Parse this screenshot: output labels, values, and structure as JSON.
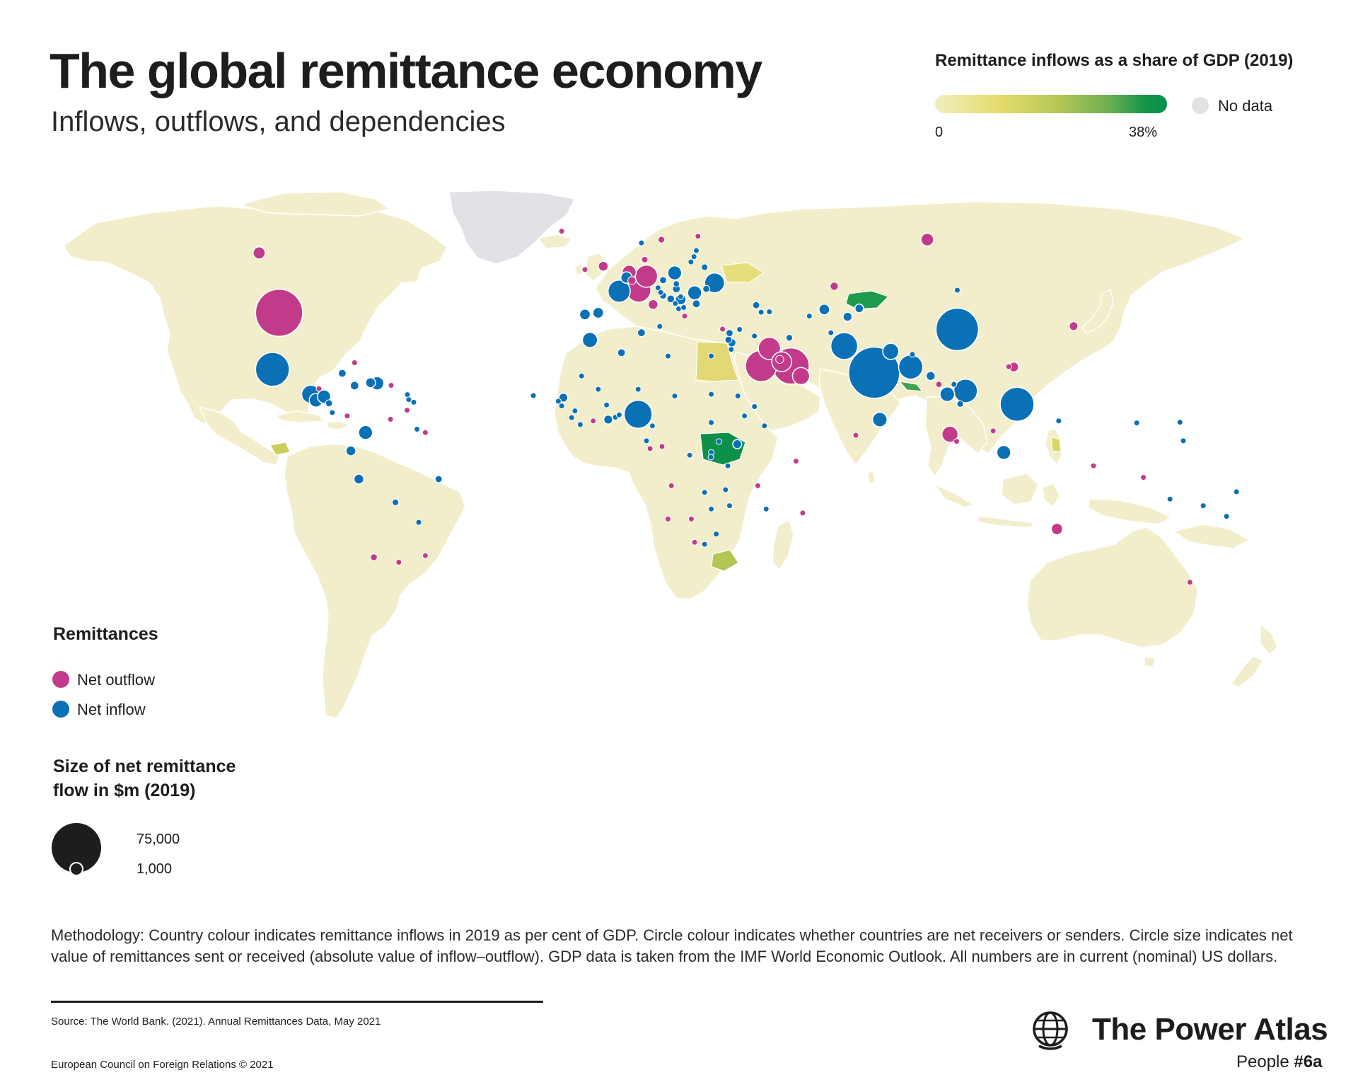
{
  "header": {
    "title": "The global remittance economy",
    "subtitle": "Inflows, outflows, and dependencies"
  },
  "gdp_legend": {
    "title": "Remittance inflows as a share of GDP (2019)",
    "min_label": "0",
    "max_label": "38%",
    "no_data_label": "No data",
    "gradient_colors": [
      "#f1edc2",
      "#e4dc6a",
      "#b8c957",
      "#6cae52",
      "#00904a"
    ],
    "no_data_color": "#e1e1e6"
  },
  "remittance_legend": {
    "title": "Remittances",
    "outflow_label": "Net outflow",
    "inflow_label": "Net inflow",
    "outflow_color": "#c23b8a",
    "inflow_color": "#0a71b6"
  },
  "size_legend": {
    "title": "Size of net remittance flow in $m (2019)",
    "big_label": "75,000",
    "small_label": "1,000",
    "big_value": 75000,
    "small_value": 1000
  },
  "map": {
    "land_color": "#f2eecb",
    "bubbles": [
      {
        "lon": -100,
        "lat": 40,
        "type": "out",
        "value": 68000
      },
      {
        "lon": -102,
        "lat": 23,
        "type": "in",
        "value": 35000
      },
      {
        "lon": -106,
        "lat": 58,
        "type": "out",
        "value": 4500
      },
      {
        "lon": -90.5,
        "lat": 15.5,
        "type": "in",
        "value": 10000
      },
      {
        "lon": -88.9,
        "lat": 13.7,
        "type": "in",
        "value": 5600
      },
      {
        "lon": -86.5,
        "lat": 14.8,
        "type": "in",
        "value": 5400
      },
      {
        "lon": -70.5,
        "lat": 18.8,
        "type": "in",
        "value": 5400
      },
      {
        "lon": -72.5,
        "lat": 19,
        "type": "in",
        "value": 3000
      },
      {
        "lon": -77.3,
        "lat": 18.1,
        "type": "in",
        "value": 2300
      },
      {
        "lon": -74,
        "lat": 4,
        "type": "in",
        "value": 6000
      },
      {
        "lon": -78.4,
        "lat": -1.5,
        "type": "in",
        "value": 3000
      },
      {
        "lon": -76,
        "lat": -10,
        "type": "in",
        "value": 3000
      },
      {
        "lon": -65,
        "lat": -17,
        "type": "in",
        "value": 1300
      },
      {
        "lon": -58,
        "lat": -23,
        "type": "in",
        "value": 600
      },
      {
        "lon": -52,
        "lat": -10,
        "type": "in",
        "value": 1500
      },
      {
        "lon": -71.5,
        "lat": -33.5,
        "type": "out",
        "value": 1400
      },
      {
        "lon": -64,
        "lat": -35,
        "type": "out",
        "value": 300
      },
      {
        "lon": -56,
        "lat": -33,
        "type": "out",
        "value": 200
      },
      {
        "lon": -79.5,
        "lat": 9,
        "type": "out",
        "value": 500
      },
      {
        "lon": -84,
        "lat": 10,
        "type": "in",
        "value": 200
      },
      {
        "lon": -85,
        "lat": 12.8,
        "type": "in",
        "value": 1500
      },
      {
        "lon": -88,
        "lat": 17.2,
        "type": "out",
        "value": 200
      },
      {
        "lon": -81,
        "lat": 21.8,
        "type": "in",
        "value": 1800
      },
      {
        "lon": -77.3,
        "lat": 25,
        "type": "out",
        "value": 200
      },
      {
        "lon": -66.3,
        "lat": 18.2,
        "type": "out",
        "value": 200
      },
      {
        "lon": -61.4,
        "lat": 15.4,
        "type": "in",
        "value": 150
      },
      {
        "lon": -61,
        "lat": 13.9,
        "type": "in",
        "value": 150
      },
      {
        "lon": -59.5,
        "lat": 13.1,
        "type": "in",
        "value": 150
      },
      {
        "lon": -61.5,
        "lat": 10.7,
        "type": "out",
        "value": 150
      },
      {
        "lon": -58.5,
        "lat": 5,
        "type": "in",
        "value": 300
      },
      {
        "lon": -56,
        "lat": 4,
        "type": "out",
        "value": 100
      },
      {
        "lon": -66.5,
        "lat": 8,
        "type": "out",
        "value": 300
      },
      {
        "lon": -15,
        "lat": 64.5,
        "type": "out",
        "value": 300
      },
      {
        "lon": -2.5,
        "lat": 54,
        "type": "out",
        "value": 3000
      },
      {
        "lon": -8,
        "lat": 53,
        "type": "out",
        "value": 400
      },
      {
        "lon": 2.3,
        "lat": 46.5,
        "type": "in",
        "value": 15000
      },
      {
        "lon": 10.5,
        "lat": 51,
        "type": "out",
        "value": 15000
      },
      {
        "lon": 8.2,
        "lat": 46.8,
        "type": "out",
        "value": 18000
      },
      {
        "lon": 5.3,
        "lat": 52.2,
        "type": "out",
        "value": 6000
      },
      {
        "lon": 4.5,
        "lat": 50.6,
        "type": "in",
        "value": 4000
      },
      {
        "lon": 6.1,
        "lat": 49.7,
        "type": "out",
        "value": 2000
      },
      {
        "lon": 12.5,
        "lat": 42.5,
        "type": "out",
        "value": 3000
      },
      {
        "lon": -4,
        "lat": 40,
        "type": "in",
        "value": 3500
      },
      {
        "lon": -8,
        "lat": 39.5,
        "type": "in",
        "value": 3500
      },
      {
        "lon": 15,
        "lat": 62,
        "type": "out",
        "value": 1300
      },
      {
        "lon": 9,
        "lat": 61,
        "type": "in",
        "value": 400
      },
      {
        "lon": 10,
        "lat": 56,
        "type": "out",
        "value": 1200
      },
      {
        "lon": 26,
        "lat": 63,
        "type": "out",
        "value": 300
      },
      {
        "lon": 14.5,
        "lat": 35.9,
        "type": "in",
        "value": 200
      },
      {
        "lon": 19,
        "lat": 52,
        "type": "in",
        "value": 6000
      },
      {
        "lon": 31,
        "lat": 49,
        "type": "in",
        "value": 12000
      },
      {
        "lon": 25,
        "lat": 46,
        "type": "in",
        "value": 6000
      },
      {
        "lon": 19.5,
        "lat": 47.2,
        "type": "in",
        "value": 1800
      },
      {
        "lon": 15.5,
        "lat": 49.8,
        "type": "in",
        "value": 1500
      },
      {
        "lon": 19.5,
        "lat": 48.7,
        "type": "in",
        "value": 1200
      },
      {
        "lon": 14,
        "lat": 47.5,
        "type": "in",
        "value": 800
      },
      {
        "lon": 14.8,
        "lat": 46.1,
        "type": "in",
        "value": 300
      },
      {
        "lon": 15.5,
        "lat": 45.2,
        "type": "in",
        "value": 1500
      },
      {
        "lon": 17.8,
        "lat": 44.2,
        "type": "in",
        "value": 1700
      },
      {
        "lon": 20.8,
        "lat": 44,
        "type": "in",
        "value": 3500
      },
      {
        "lon": 19.2,
        "lat": 42.8,
        "type": "in",
        "value": 300
      },
      {
        "lon": 20.2,
        "lat": 41.2,
        "type": "in",
        "value": 800
      },
      {
        "lon": 21.7,
        "lat": 41.6,
        "type": "in",
        "value": 300
      },
      {
        "lon": 25.5,
        "lat": 42.7,
        "type": "in",
        "value": 1800
      },
      {
        "lon": 28.5,
        "lat": 47.2,
        "type": "in",
        "value": 1500
      },
      {
        "lon": 28,
        "lat": 53.7,
        "type": "in",
        "value": 1300
      },
      {
        "lon": 23.9,
        "lat": 55.3,
        "type": "in",
        "value": 700
      },
      {
        "lon": 24.8,
        "lat": 56.9,
        "type": "in",
        "value": 600
      },
      {
        "lon": 25.5,
        "lat": 58.7,
        "type": "in",
        "value": 300
      },
      {
        "lon": 20.8,
        "lat": 44.8,
        "type": "in",
        "value": 300
      },
      {
        "lon": 22,
        "lat": 39,
        "type": "out",
        "value": 800
      },
      {
        "lon": 33.4,
        "lat": 35.1,
        "type": "out",
        "value": 100
      },
      {
        "lon": 43.5,
        "lat": 42.3,
        "type": "in",
        "value": 1500
      },
      {
        "lon": 45,
        "lat": 40.2,
        "type": "in",
        "value": 1000
      },
      {
        "lon": 47.5,
        "lat": 40.3,
        "type": "in",
        "value": 700
      },
      {
        "lon": 35.5,
        "lat": 33.9,
        "type": "in",
        "value": 1500
      },
      {
        "lon": 35.2,
        "lat": 31.9,
        "type": "in",
        "value": 1500
      },
      {
        "lon": 36.2,
        "lat": 31,
        "type": "in",
        "value": 2000
      },
      {
        "lon": 38.5,
        "lat": 35,
        "type": "in",
        "value": 1000
      },
      {
        "lon": 36,
        "lat": 29,
        "type": "in",
        "value": 200
      },
      {
        "lon": 43,
        "lat": 33,
        "type": "in",
        "value": 300
      },
      {
        "lon": 45,
        "lat": 24,
        "type": "out",
        "value": 30000
      },
      {
        "lon": 47.5,
        "lat": 29.3,
        "type": "out",
        "value": 15000
      },
      {
        "lon": 51.2,
        "lat": 25.3,
        "type": "out",
        "value": 12000
      },
      {
        "lon": 54,
        "lat": 24,
        "type": "out",
        "value": 40000
      },
      {
        "lon": 57,
        "lat": 21,
        "type": "out",
        "value": 9000
      },
      {
        "lon": 50.6,
        "lat": 26,
        "type": "out",
        "value": 2000
      },
      {
        "lon": 95,
        "lat": 62,
        "type": "out",
        "value": 5000
      },
      {
        "lon": 67,
        "lat": 48,
        "type": "out",
        "value": 2000
      },
      {
        "lon": 64,
        "lat": 41,
        "type": "in",
        "value": 3500
      },
      {
        "lon": 74.5,
        "lat": 41.3,
        "type": "in",
        "value": 2300
      },
      {
        "lon": 71,
        "lat": 38.8,
        "type": "in",
        "value": 2500
      },
      {
        "lon": 59.5,
        "lat": 39,
        "type": "in",
        "value": 100
      },
      {
        "lon": 66,
        "lat": 34,
        "type": "in",
        "value": 800
      },
      {
        "lon": 53.5,
        "lat": 32.5,
        "type": "in",
        "value": 1300
      },
      {
        "lon": 70,
        "lat": 30,
        "type": "in",
        "value": 22000
      },
      {
        "lon": 79,
        "lat": 22,
        "type": "in",
        "value": 80000
      },
      {
        "lon": 84,
        "lat": 28.4,
        "type": "in",
        "value": 8000
      },
      {
        "lon": 90.5,
        "lat": 27.5,
        "type": "in",
        "value": 100
      },
      {
        "lon": 90,
        "lat": 23.7,
        "type": "in",
        "value": 18000
      },
      {
        "lon": 80.7,
        "lat": 7.9,
        "type": "in",
        "value": 6500
      },
      {
        "lon": 73.5,
        "lat": 3.2,
        "type": "out",
        "value": 400
      },
      {
        "lon": 104,
        "lat": 35,
        "type": "in",
        "value": 55000
      },
      {
        "lon": 104,
        "lat": 46.8,
        "type": "in",
        "value": 500
      },
      {
        "lon": 139,
        "lat": 36,
        "type": "out",
        "value": 2200
      },
      {
        "lon": 121,
        "lat": 23.7,
        "type": "out",
        "value": 3000
      },
      {
        "lon": 119.5,
        "lat": 23.8,
        "type": "out",
        "value": 300
      },
      {
        "lon": 101,
        "lat": 15.5,
        "type": "in",
        "value": 6500
      },
      {
        "lon": 106.5,
        "lat": 16.5,
        "type": "in",
        "value": 17000
      },
      {
        "lon": 103,
        "lat": 18.5,
        "type": "in",
        "value": 300
      },
      {
        "lon": 104.9,
        "lat": 12.6,
        "type": "in",
        "value": 1300
      },
      {
        "lon": 96,
        "lat": 21,
        "type": "in",
        "value": 2500
      },
      {
        "lon": 98.5,
        "lat": 18.5,
        "type": "out",
        "value": 1200
      },
      {
        "lon": 101.8,
        "lat": 3.5,
        "type": "out",
        "value": 8000
      },
      {
        "lon": 103.8,
        "lat": 1.35,
        "type": "out",
        "value": 300
      },
      {
        "lon": 114.8,
        "lat": 4.5,
        "type": "out",
        "value": 300
      },
      {
        "lon": 122,
        "lat": 12.5,
        "type": "in",
        "value": 35000
      },
      {
        "lon": 118,
        "lat": -2,
        "type": "in",
        "value": 6000
      },
      {
        "lon": 134,
        "lat": -25,
        "type": "out",
        "value": 4000
      },
      {
        "lon": 174,
        "lat": -41,
        "type": "out",
        "value": 600
      },
      {
        "lon": 145,
        "lat": -6,
        "type": "out",
        "value": 300
      },
      {
        "lon": 160,
        "lat": -9.5,
        "type": "out",
        "value": 100
      },
      {
        "lon": 178,
        "lat": -18,
        "type": "in",
        "value": 300
      },
      {
        "lon": 168,
        "lat": -16,
        "type": "in",
        "value": 100
      },
      {
        "lon": -172,
        "lat": -13.8,
        "type": "in",
        "value": 150
      },
      {
        "lon": -175,
        "lat": -21.2,
        "type": "in",
        "value": 200
      },
      {
        "lon": 172,
        "lat": 1.5,
        "type": "in",
        "value": 50
      },
      {
        "lon": 171,
        "lat": 7.1,
        "type": "in",
        "value": 50
      },
      {
        "lon": 158,
        "lat": 6.9,
        "type": "in",
        "value": 50
      },
      {
        "lon": 134.5,
        "lat": 7.5,
        "type": "in",
        "value": 50
      },
      {
        "lon": 30,
        "lat": 27,
        "type": "in",
        "value": 200
      },
      {
        "lon": -6.5,
        "lat": 31.8,
        "type": "in",
        "value": 7000
      },
      {
        "lon": 3,
        "lat": 28,
        "type": "in",
        "value": 1800
      },
      {
        "lon": 9,
        "lat": 34,
        "type": "in",
        "value": 1800
      },
      {
        "lon": 17,
        "lat": 27,
        "type": "in",
        "value": 100
      },
      {
        "lon": -9,
        "lat": 21,
        "type": "in",
        "value": 100
      },
      {
        "lon": -1.5,
        "lat": 12.3,
        "type": "in",
        "value": 200
      },
      {
        "lon": -4,
        "lat": 17,
        "type": "in",
        "value": 300
      },
      {
        "lon": 8,
        "lat": 17,
        "type": "in",
        "value": 100
      },
      {
        "lon": 19,
        "lat": 15,
        "type": "in",
        "value": 100
      },
      {
        "lon": -14.5,
        "lat": 14.5,
        "type": "in",
        "value": 2500
      },
      {
        "lon": -16,
        "lat": 13.4,
        "type": "in",
        "value": 200
      },
      {
        "lon": -15,
        "lat": 12,
        "type": "in",
        "value": 100
      },
      {
        "lon": -11,
        "lat": 10.5,
        "type": "in",
        "value": 100
      },
      {
        "lon": -12,
        "lat": 8.5,
        "type": "in",
        "value": 100
      },
      {
        "lon": -9.4,
        "lat": 6.4,
        "type": "in",
        "value": 300
      },
      {
        "lon": -5.5,
        "lat": 7.5,
        "type": "out",
        "value": 300
      },
      {
        "lon": -1,
        "lat": 7.9,
        "type": "in",
        "value": 2500
      },
      {
        "lon": 1.2,
        "lat": 8.6,
        "type": "in",
        "value": 400
      },
      {
        "lon": 2.3,
        "lat": 9.3,
        "type": "in",
        "value": 300
      },
      {
        "lon": 8,
        "lat": 9.5,
        "type": "in",
        "value": 24000
      },
      {
        "lon": -23.5,
        "lat": 15.1,
        "type": "in",
        "value": 200
      },
      {
        "lon": 12.3,
        "lat": 6,
        "type": "in",
        "value": 300
      },
      {
        "lon": 10.5,
        "lat": 1.5,
        "type": "in",
        "value": 50
      },
      {
        "lon": 11.6,
        "lat": -0.8,
        "type": "out",
        "value": 100
      },
      {
        "lon": 15.2,
        "lat": -0.2,
        "type": "out",
        "value": 100
      },
      {
        "lon": 23.5,
        "lat": -2.8,
        "type": "in",
        "value": 300
      },
      {
        "lon": 18,
        "lat": -12,
        "type": "out",
        "value": 400
      },
      {
        "lon": 30,
        "lat": 15.5,
        "type": "in",
        "value": 200
      },
      {
        "lon": 30,
        "lat": 7,
        "type": "in",
        "value": 800
      },
      {
        "lon": 40,
        "lat": 9,
        "type": "in",
        "value": 500
      },
      {
        "lon": 46,
        "lat": 6,
        "type": "in",
        "value": 300
      },
      {
        "lon": 38,
        "lat": 15,
        "type": "in",
        "value": 100
      },
      {
        "lon": 43,
        "lat": 11.8,
        "type": "in",
        "value": 100
      },
      {
        "lon": 32.3,
        "lat": 1.3,
        "type": "in",
        "value": 800
      },
      {
        "lon": 37.8,
        "lat": 0.5,
        "type": "in",
        "value": 2500
      },
      {
        "lon": 30,
        "lat": -2,
        "type": "in",
        "value": 150
      },
      {
        "lon": 29.9,
        "lat": -3.4,
        "type": "in",
        "value": 50
      },
      {
        "lon": 35,
        "lat": -6,
        "type": "in",
        "value": 300
      },
      {
        "lon": 34.3,
        "lat": -13.2,
        "type": "in",
        "value": 200
      },
      {
        "lon": 35.5,
        "lat": -18,
        "type": "in",
        "value": 300
      },
      {
        "lon": 28,
        "lat": -14,
        "type": "in",
        "value": 100
      },
      {
        "lon": 30,
        "lat": -19,
        "type": "in",
        "value": 1000
      },
      {
        "lon": 24,
        "lat": -22,
        "type": "out",
        "value": 100
      },
      {
        "lon": 17,
        "lat": -22,
        "type": "out",
        "value": 100
      },
      {
        "lon": 25,
        "lat": -29,
        "type": "out",
        "value": 400
      },
      {
        "lon": 28,
        "lat": -29.6,
        "type": "in",
        "value": 300
      },
      {
        "lon": 31.5,
        "lat": -26.5,
        "type": "in",
        "value": 200
      },
      {
        "lon": 46.5,
        "lat": -19,
        "type": "in",
        "value": 300
      },
      {
        "lon": 44,
        "lat": -12,
        "type": "out",
        "value": 100
      },
      {
        "lon": 57.5,
        "lat": -20.2,
        "type": "out",
        "value": 200
      },
      {
        "lon": 55.5,
        "lat": -4.6,
        "type": "out",
        "value": 100
      }
    ]
  },
  "methodology": "Methodology: Country colour indicates remittance inflows in 2019 as per cent of GDP. Circle colour indicates whether countries are net receivers or senders. Circle size indicates net value of remittances sent or received (absolute value of inflow–outflow). GDP data is taken from the IMF World Economic Outlook. All numbers are in current (nominal) US dollars.",
  "footer": {
    "source": "Source: The World Bank. (2021). Annual Remittances Data, May 2021",
    "copyright": "European Council on Foreign Relations © 2021",
    "brand_name": "The Power Atlas",
    "series_prefix": "People",
    "series_number": "#6a"
  }
}
